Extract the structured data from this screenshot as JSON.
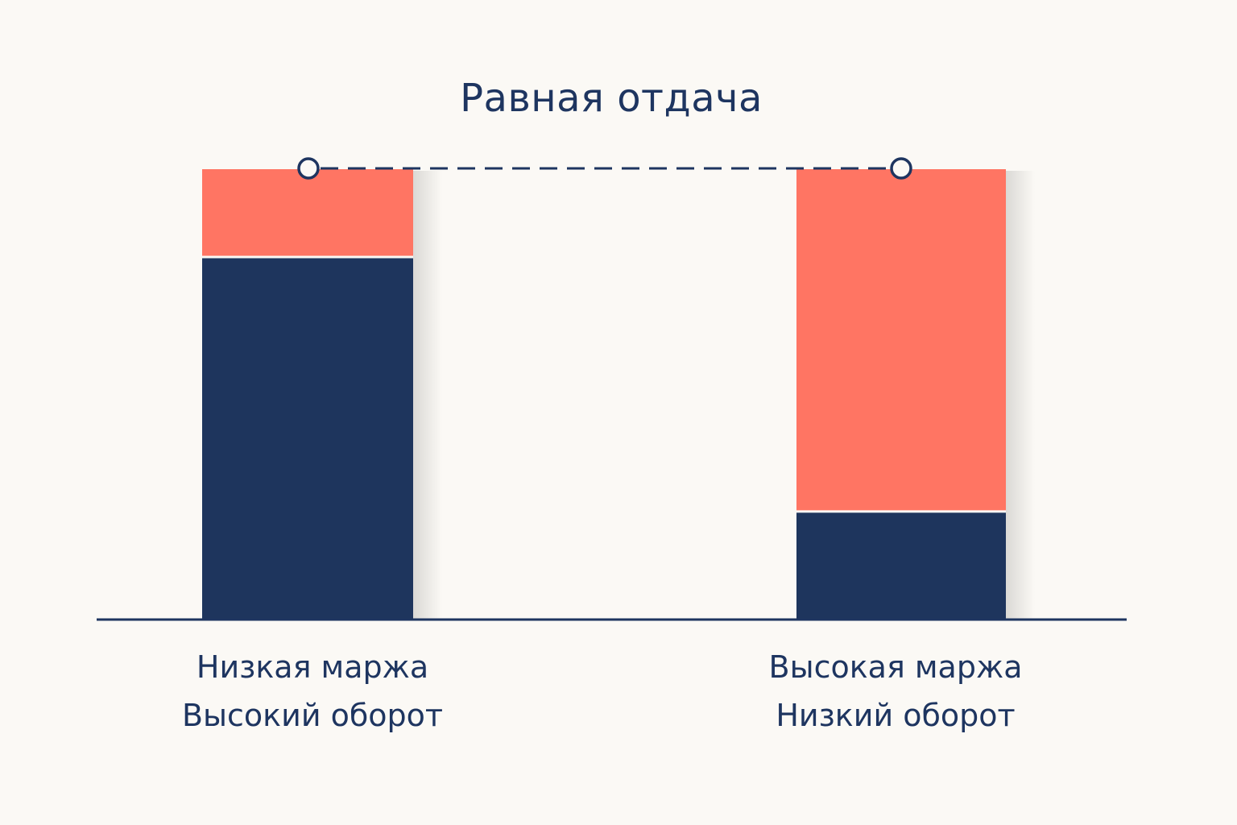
{
  "title": "Равная отдача",
  "colors": {
    "background": "#fbf9f5",
    "margin": "#ff7563",
    "turnover": "#1e355d",
    "text": "#1e3560"
  },
  "bars": [
    {
      "name": "left",
      "label_line1": "Низкая маржа",
      "label_line2": "Высокий оборот",
      "segments": [
        {
          "role": "turnover",
          "share": 0.805
        },
        {
          "role": "margin",
          "share": 0.195
        }
      ]
    },
    {
      "name": "right",
      "label_line1": "Высокая маржа",
      "label_line2": "Низкий оборот",
      "segments": [
        {
          "role": "turnover",
          "share": 0.24
        },
        {
          "role": "margin",
          "share": 0.76
        }
      ]
    }
  ]
}
